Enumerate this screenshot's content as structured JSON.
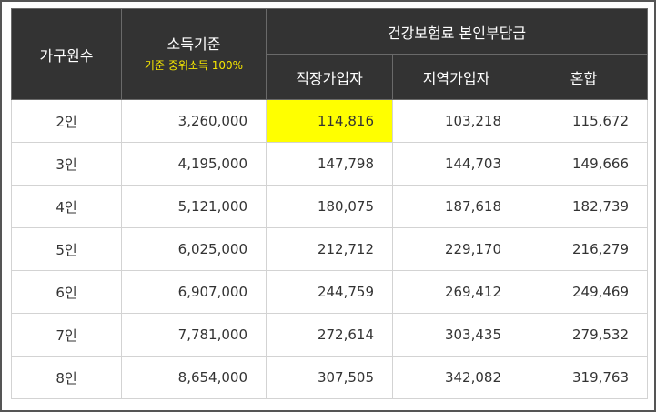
{
  "headers": {
    "household_size": "가구원수",
    "income_standard": "소득기준",
    "income_note": "기준 중위소득 100%",
    "premium_group": "건강보험료 본인부담금",
    "employee": "직장가입자",
    "regional": "지역가입자",
    "mixed": "혼합"
  },
  "colors": {
    "header_bg": "#333333",
    "header_text": "#ffffff",
    "note_text": "#f5e600",
    "highlight": "#ffff00",
    "grid": "#d3d3d3"
  },
  "rows": [
    {
      "size": "2인",
      "income": "3,260,000",
      "employee": "114,816",
      "regional": "103,218",
      "mixed": "115,672"
    },
    {
      "size": "3인",
      "income": "4,195,000",
      "employee": "147,798",
      "regional": "144,703",
      "mixed": "149,666"
    },
    {
      "size": "4인",
      "income": "5,121,000",
      "employee": "180,075",
      "regional": "187,618",
      "mixed": "182,739"
    },
    {
      "size": "5인",
      "income": "6,025,000",
      "employee": "212,712",
      "regional": "229,170",
      "mixed": "216,279"
    },
    {
      "size": "6인",
      "income": "6,907,000",
      "employee": "244,759",
      "regional": "269,412",
      "mixed": "249,469"
    },
    {
      "size": "7인",
      "income": "7,781,000",
      "employee": "272,614",
      "regional": "303,435",
      "mixed": "279,532"
    },
    {
      "size": "8인",
      "income": "8,654,000",
      "employee": "307,505",
      "regional": "342,082",
      "mixed": "319,763"
    }
  ],
  "highlighted_cell": {
    "row": 0,
    "column": "employee"
  }
}
